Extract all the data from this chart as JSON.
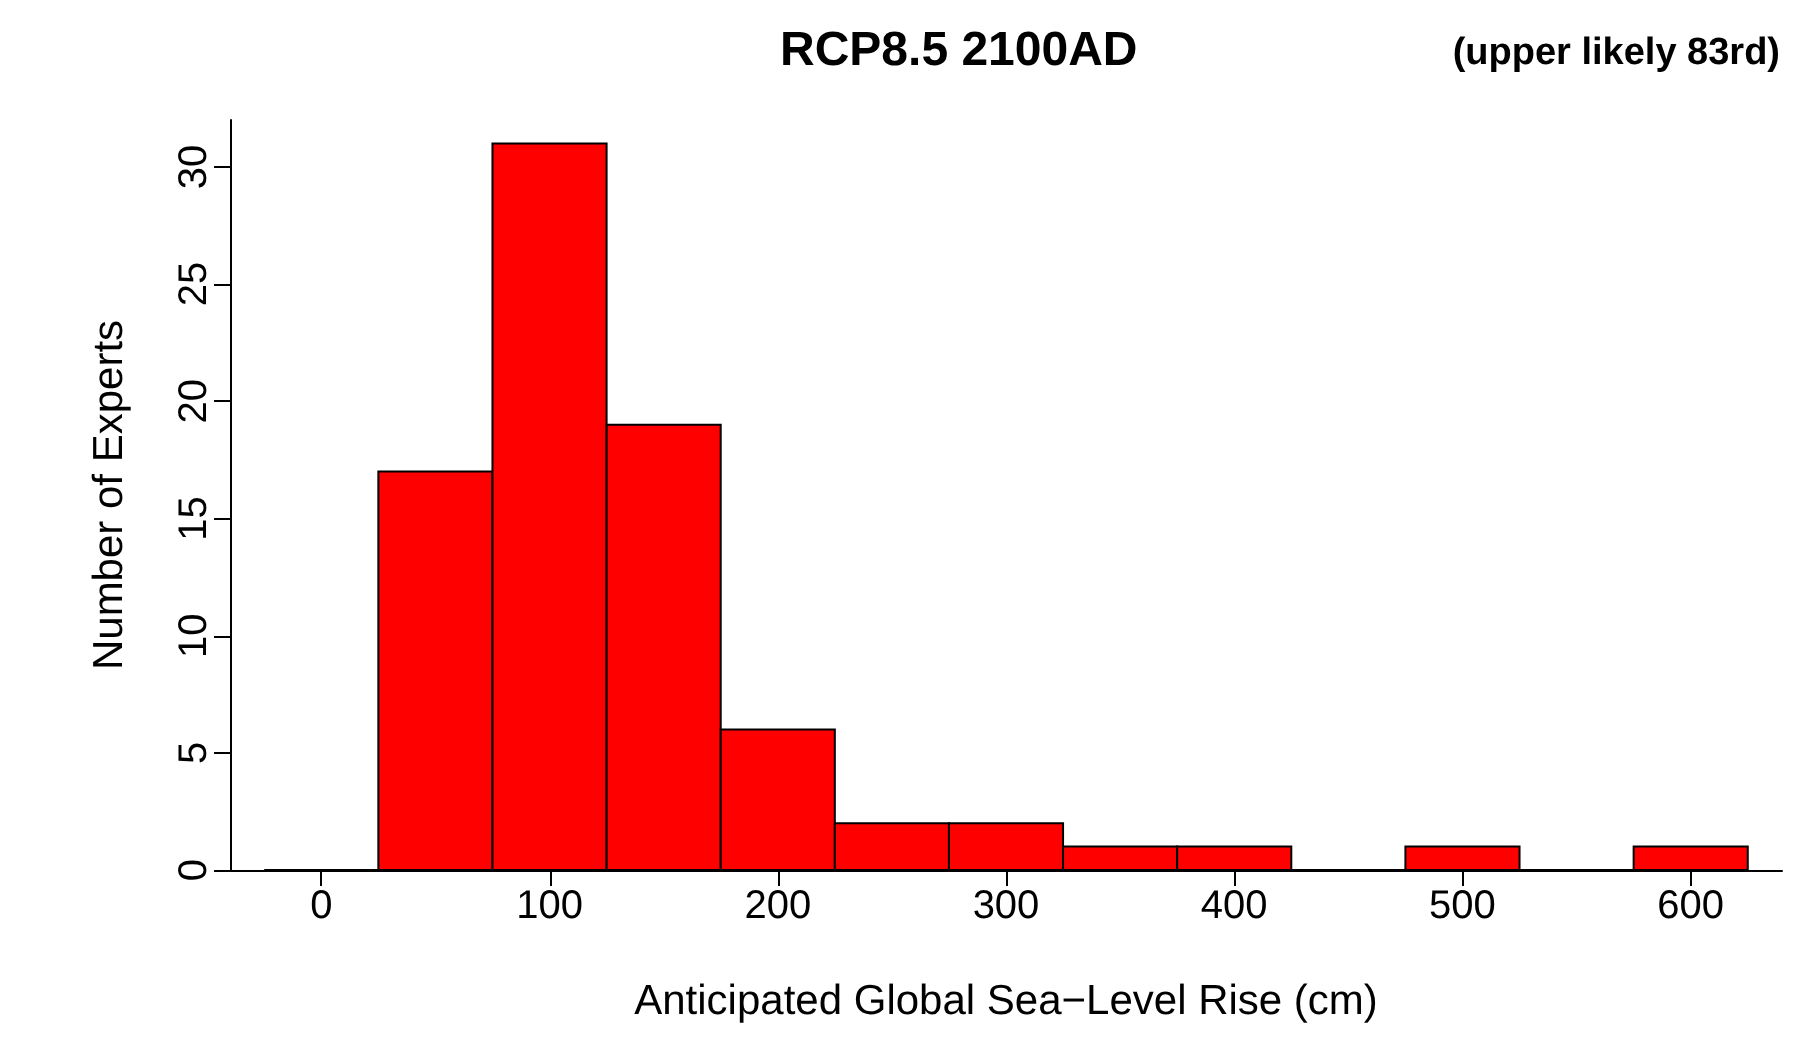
{
  "chart_data": {
    "type": "histogram",
    "title": "RCP8.5 2100AD",
    "subtitle": "(upper likely 83rd)",
    "xlabel": "Anticipated Global Sea−Level Rise (cm)",
    "ylabel": "Number of Experts",
    "bins": [
      -25,
      25,
      75,
      125,
      175,
      225,
      275,
      325,
      375,
      425,
      475,
      525,
      575,
      625
    ],
    "values": [
      0,
      17,
      31,
      19,
      6,
      2,
      2,
      1,
      1,
      0,
      1,
      0,
      1
    ],
    "color": "#ff0000",
    "xlim": [
      -40,
      640
    ],
    "xticks": [
      0,
      100,
      200,
      300,
      400,
      500,
      600
    ],
    "ylim": [
      0,
      32
    ],
    "yticks": [
      0,
      5,
      10,
      15,
      20,
      25,
      30
    ],
    "grid": false
  }
}
